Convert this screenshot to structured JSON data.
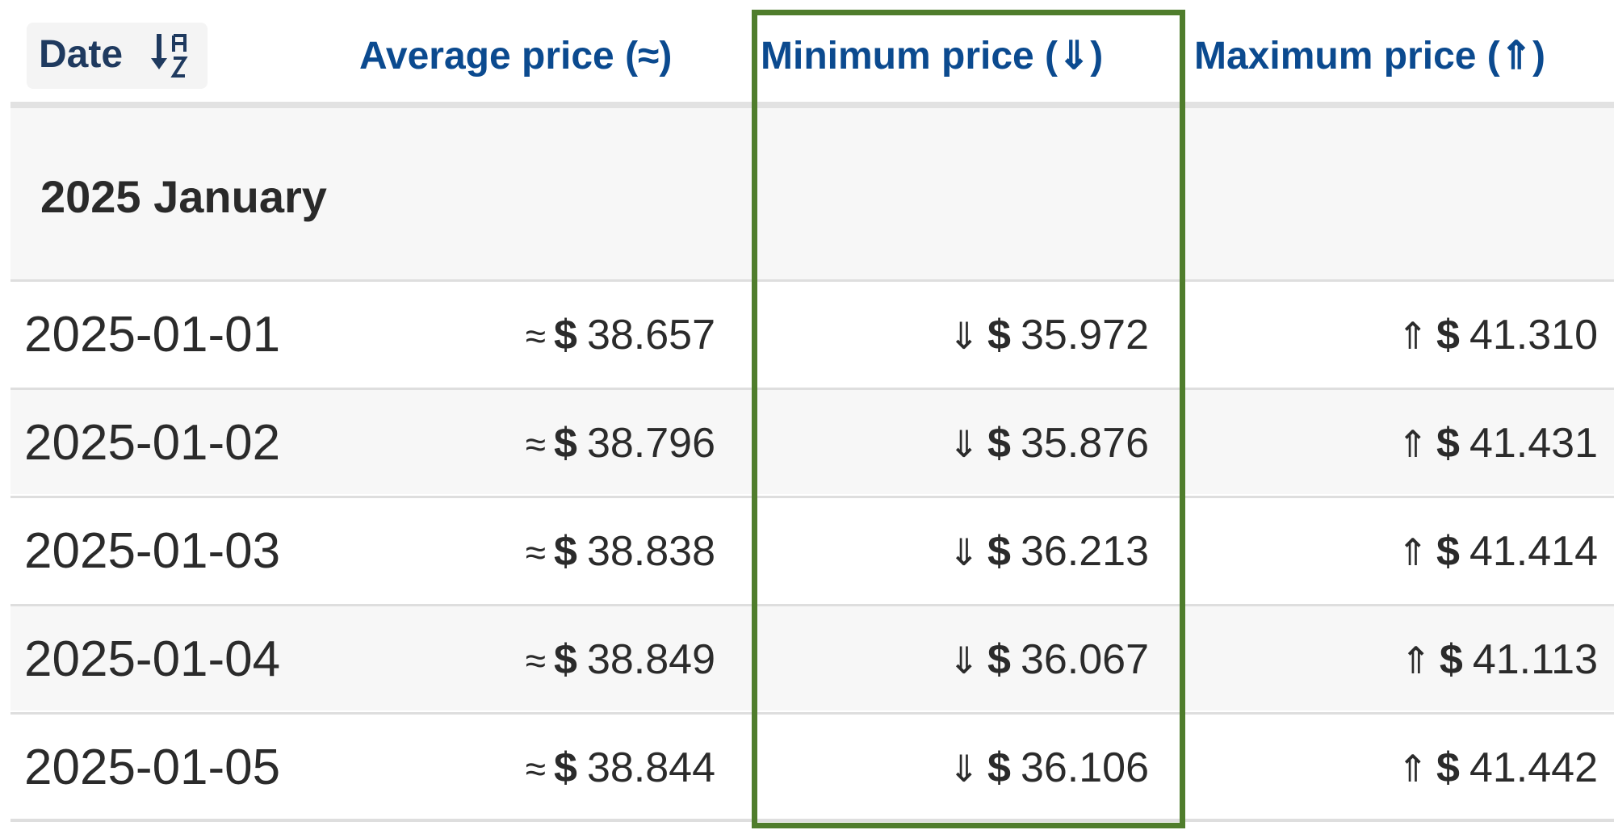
{
  "header": {
    "date_label": "Date",
    "avg_label": "Average price (≈)",
    "min_label": "Minimum price (⇓)",
    "max_label": "Maximum price (⇑)"
  },
  "group": {
    "month": "2025 January"
  },
  "symbols": {
    "avg": "≈",
    "min": "⇓",
    "max": "⇑",
    "currency": "$"
  },
  "rows": [
    {
      "date": "2025-01-01",
      "avg": "38.657",
      "min": "35.972",
      "max": "41.310"
    },
    {
      "date": "2025-01-02",
      "avg": "38.796",
      "min": "35.876",
      "max": "41.431"
    },
    {
      "date": "2025-01-03",
      "avg": "38.838",
      "min": "36.213",
      "max": "41.414"
    },
    {
      "date": "2025-01-04",
      "avg": "38.849",
      "min": "36.067",
      "max": "41.113"
    },
    {
      "date": "2025-01-05",
      "avg": "38.844",
      "min": "36.106",
      "max": "41.442"
    }
  ],
  "colors": {
    "header_text": "#0b4a8f",
    "highlight_border": "#4f7d2c",
    "alt_row": "#f7f7f7"
  }
}
